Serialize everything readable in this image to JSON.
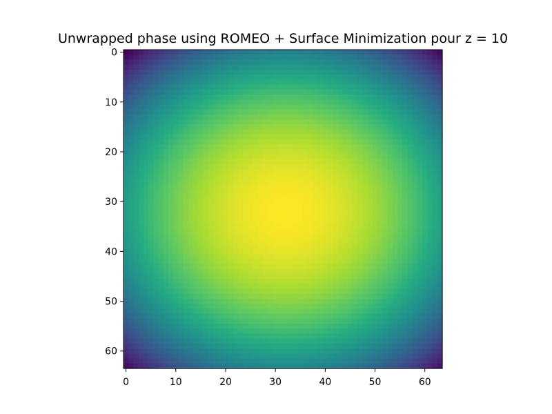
{
  "chart_data": {
    "type": "heatmap",
    "title": "Unwrapped phase using ROMEO + Surface Minimization pour z = 10",
    "xlabel": "",
    "ylabel": "",
    "colormap": "viridis",
    "grid": false,
    "legend": "none",
    "rows": 64,
    "cols": 64,
    "xlim": [
      -0.5,
      63.5
    ],
    "ylim": [
      63.5,
      -0.5
    ],
    "xticks": [
      0,
      10,
      20,
      30,
      40,
      50,
      60
    ],
    "yticks": [
      0,
      10,
      20,
      30,
      40,
      50,
      60
    ],
    "xtick_labels": [
      "0",
      "10",
      "20",
      "30",
      "40",
      "50",
      "60"
    ],
    "ytick_labels": [
      "0",
      "10",
      "20",
      "30",
      "40",
      "50",
      "60"
    ],
    "surface": {
      "model": "2D quadratic bowl (inverted)",
      "center": [
        32,
        32
      ],
      "normalized_value_at_center": 1.0,
      "normalized_value_at_corners": 0.0,
      "x_weight": 0.8,
      "y_weight": 1.0
    }
  }
}
